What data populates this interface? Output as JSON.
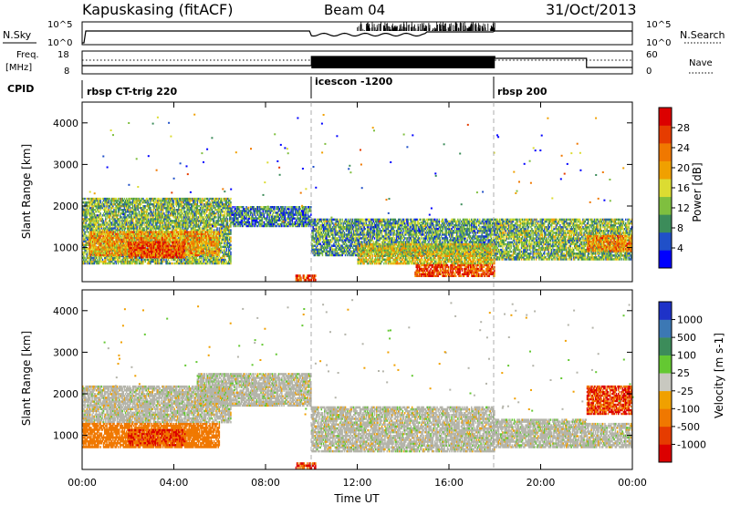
{
  "header": {
    "station": "Kapuskasing (fitACF)",
    "beam": "Beam 04",
    "date": "31/Oct/2013"
  },
  "aux_panels": {
    "nsky_label": "N.Sky",
    "nsky_ticks": [
      "10^5",
      "10^0"
    ],
    "nsearch_label": "N.Search",
    "nsearch_ticks": [
      "10^5",
      "10^0"
    ],
    "freq_label_1": "Freq.",
    "freq_label_2": "[MHz]",
    "freq_ticks": [
      "18",
      "8"
    ],
    "nave_label": "Nave",
    "nave_ticks": [
      "60",
      "0"
    ],
    "cpid_label": "CPID"
  },
  "cpid_segments": [
    {
      "label": "rbsp CT-trig 220",
      "start_h": 0
    },
    {
      "label": "icescon -1200",
      "start_h": 10
    },
    {
      "label": "rbsp 200",
      "start_h": 18
    }
  ],
  "colors": {
    "power_scale": [
      "#0000ff",
      "#2050c8",
      "#3c8c5a",
      "#7fbf3f",
      "#dcdc32",
      "#f0a000",
      "#f07800",
      "#e63c00",
      "#dc0000"
    ],
    "velocity_scale": [
      "#1e32c8",
      "#3c78b4",
      "#3c8c5a",
      "#64c832",
      "#c8c8c0",
      "#f0a000",
      "#f07800",
      "#e63c00",
      "#dc0000"
    ],
    "ground_scatter": "#b4b4aa"
  },
  "chart_data": [
    {
      "type": "heatmap",
      "title": "",
      "xlabel": "",
      "ylabel": "Slant Range [km]",
      "colorbar_label": "Power [dB]",
      "colorbar_ticks": [
        "4",
        "8",
        "12",
        "16",
        "20",
        "24",
        "28"
      ],
      "xlim": [
        0,
        24
      ],
      "ylim": [
        180,
        4500
      ],
      "ytick_labels": [
        "1000",
        "2000",
        "3000",
        "4000"
      ],
      "regions": [
        {
          "x": [
            0,
            6.5
          ],
          "y": [
            600,
            2200
          ],
          "value": 12
        },
        {
          "x": [
            0.3,
            6.0
          ],
          "y": [
            800,
            1400
          ],
          "value": 20
        },
        {
          "x": [
            2.0,
            4.5
          ],
          "y": [
            750,
            1150
          ],
          "value": 26
        },
        {
          "x": [
            6.5,
            10.0
          ],
          "y": [
            1500,
            2000
          ],
          "value": 8
        },
        {
          "x": [
            9.3,
            10.2
          ],
          "y": [
            200,
            350
          ],
          "value": 26
        },
        {
          "x": [
            10.0,
            18.0
          ],
          "y": [
            800,
            1700
          ],
          "value": 10
        },
        {
          "x": [
            12.0,
            18.0
          ],
          "y": [
            600,
            1100
          ],
          "value": 16
        },
        {
          "x": [
            14.5,
            18.0
          ],
          "y": [
            300,
            600
          ],
          "value": 26
        },
        {
          "x": [
            18.0,
            24.0
          ],
          "y": [
            700,
            1700
          ],
          "value": 12
        },
        {
          "x": [
            22.0,
            24.0
          ],
          "y": [
            900,
            1300
          ],
          "value": 22
        }
      ]
    },
    {
      "type": "heatmap",
      "title": "",
      "xlabel": "Time UT",
      "ylabel": "Slant Range [km]",
      "colorbar_label": "Velocity [m s-1]",
      "colorbar_ticks": [
        "1000",
        "500",
        "100",
        "25",
        "-25",
        "-100",
        "-500",
        "-1000"
      ],
      "xlim": [
        0,
        24
      ],
      "ylim": [
        180,
        4500
      ],
      "xtick_labels": [
        "00:00",
        "04:00",
        "08:00",
        "12:00",
        "16:00",
        "20:00",
        "00:00"
      ],
      "ytick_labels": [
        "1000",
        "2000",
        "3000",
        "4000"
      ],
      "regions": [
        {
          "x": [
            0,
            6.5
          ],
          "y": [
            1300,
            2200
          ],
          "value": 0
        },
        {
          "x": [
            0,
            6.0
          ],
          "y": [
            700,
            1300
          ],
          "value": -300
        },
        {
          "x": [
            2.0,
            4.5
          ],
          "y": [
            750,
            1150
          ],
          "value": -500
        },
        {
          "x": [
            5.0,
            10.0
          ],
          "y": [
            1700,
            2500
          ],
          "value": 0
        },
        {
          "x": [
            9.3,
            10.2
          ],
          "y": [
            200,
            350
          ],
          "value": -500
        },
        {
          "x": [
            10.0,
            18.0
          ],
          "y": [
            600,
            1700
          ],
          "value": 0
        },
        {
          "x": [
            18.0,
            22.0
          ],
          "y": [
            700,
            1400
          ],
          "value": 0
        },
        {
          "x": [
            22.0,
            24.0
          ],
          "y": [
            700,
            1300
          ],
          "value": 0
        },
        {
          "x": [
            22.0,
            24.0
          ],
          "y": [
            1500,
            2200
          ],
          "value": -500
        }
      ]
    }
  ],
  "footer": {
    "time_label": "Time UT"
  }
}
